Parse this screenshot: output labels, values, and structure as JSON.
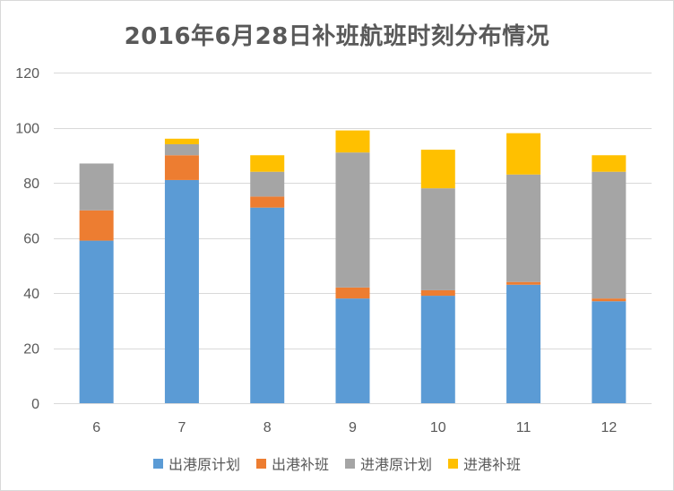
{
  "chart_data": {
    "type": "bar",
    "stacked": true,
    "title": "2016年6月28日补班航班时刻分布情况",
    "xlabel": "",
    "ylabel": "",
    "categories": [
      "6",
      "7",
      "8",
      "9",
      "10",
      "11",
      "12"
    ],
    "ylim": [
      0,
      120
    ],
    "yticks": [
      0,
      20,
      40,
      60,
      80,
      100,
      120
    ],
    "grid": true,
    "legend_position": "bottom",
    "series": [
      {
        "name": "出港原计划",
        "color": "#5b9bd5",
        "values": [
          59,
          81,
          71,
          38,
          39,
          43,
          37
        ]
      },
      {
        "name": "出港补班",
        "color": "#ed7d31",
        "values": [
          11,
          9,
          4,
          4,
          2,
          1,
          1
        ]
      },
      {
        "name": "进港原计划",
        "color": "#a5a5a5",
        "values": [
          17,
          4,
          9,
          49,
          37,
          39,
          46
        ]
      },
      {
        "name": "进港补班",
        "color": "#ffc000",
        "values": [
          0,
          2,
          6,
          8,
          14,
          15,
          6
        ]
      }
    ]
  }
}
